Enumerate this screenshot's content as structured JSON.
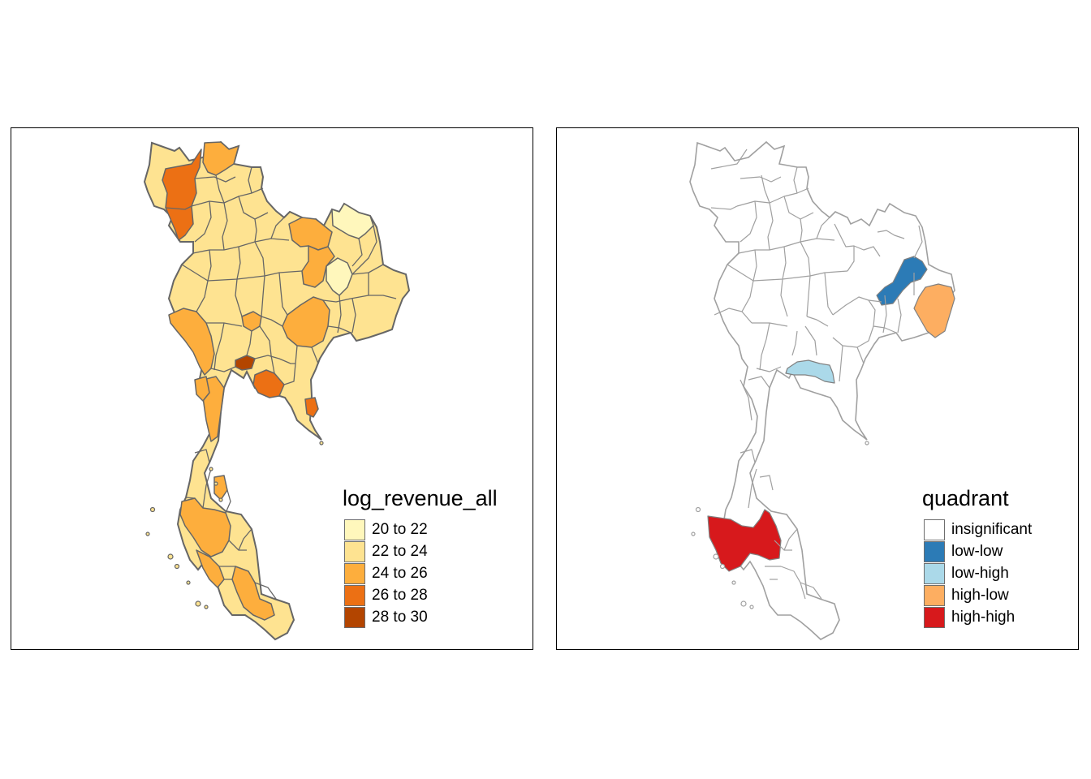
{
  "maps": [
    {
      "legend": {
        "title": "log_revenue_all",
        "items": [
          {
            "label": "20 to 22",
            "color": "#fff7bc"
          },
          {
            "label": "22 to 24",
            "color": "#fee391"
          },
          {
            "label": "24 to 26",
            "color": "#fdae3d"
          },
          {
            "label": "26 to 28",
            "color": "#ec7014"
          },
          {
            "label": "28 to 30",
            "color": "#b34500"
          }
        ]
      },
      "border_color": "#666666",
      "default_fill": "#fee391",
      "highlight_regions": [
        {
          "region": "northwest province",
          "class": "26 to 28"
        },
        {
          "region": "far north province",
          "class": "24 to 26"
        },
        {
          "region": "northeast upper province",
          "class": "24 to 26"
        },
        {
          "region": "northeast upper-central province",
          "class": "20 to 22"
        },
        {
          "region": "central-east province",
          "class": "26 to 28"
        },
        {
          "region": "west province",
          "class": "24 to 26"
        },
        {
          "region": "northeast south-central province",
          "class": "24 to 26"
        },
        {
          "region": "central province",
          "class": "24 to 26"
        },
        {
          "region": "capital",
          "class": "28 to 30"
        },
        {
          "region": "east coast province",
          "class": "26 to 28"
        },
        {
          "region": "upper peninsula",
          "class": "24 to 26"
        },
        {
          "region": "southern peninsula",
          "class": "24 to 26"
        },
        {
          "region": "deep south",
          "class": "24 to 26"
        },
        {
          "region": "far east coast",
          "class": "24 to 26"
        }
      ]
    },
    {
      "legend": {
        "title": "quadrant",
        "items": [
          {
            "label": "insignificant",
            "color": "#ffffff"
          },
          {
            "label": "low-low",
            "color": "#2c7bb6"
          },
          {
            "label": "low-high",
            "color": "#abd9e9"
          },
          {
            "label": "high-low",
            "color": "#fdae61"
          },
          {
            "label": "high-high",
            "color": "#d7191c"
          }
        ]
      },
      "border_color": "#a0a0a0",
      "default_fill": "#ffffff",
      "highlight_regions": [
        {
          "region": "northeast cluster",
          "class": "low-low"
        },
        {
          "region": "east border province",
          "class": "high-low"
        },
        {
          "region": "central cluster",
          "class": "low-high"
        },
        {
          "region": "southern peninsula cluster",
          "class": "high-high"
        }
      ]
    }
  ]
}
